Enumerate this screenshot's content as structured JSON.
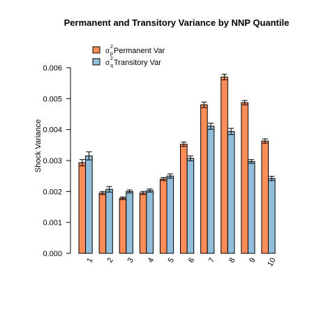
{
  "chart_data": {
    "type": "bar",
    "title": "Permanent and Transitory Variance by  NNP Quantile",
    "xlabel": "",
    "ylabel": "Shock Variance",
    "ylim": [
      0,
      0.006
    ],
    "yticks": [
      "0.000",
      "0.001",
      "0.002",
      "0.003",
      "0.004",
      "0.005",
      "0.006"
    ],
    "grid": false,
    "legend_position": "top-left",
    "categories": [
      "1",
      "2",
      "3",
      "4",
      "5",
      "6",
      "7",
      "8",
      "9",
      "10"
    ],
    "series": [
      {
        "name": "Permanent Var",
        "symbol": "σ",
        "superscript": "2",
        "subscript": "p",
        "color": "#FC8D59",
        "values": [
          0.00293,
          0.00195,
          0.00178,
          0.00195,
          0.0024,
          0.00353,
          0.0048,
          0.0057,
          0.00487,
          0.00363
        ],
        "errors": [
          0.0001,
          5e-05,
          4e-05,
          5e-05,
          5e-05,
          7e-05,
          9e-05,
          9e-05,
          7e-05,
          7e-05
        ]
      },
      {
        "name": "Transitory Var",
        "symbol": "σ",
        "superscript": "2",
        "subscript": "q",
        "color": "#91BFDB",
        "values": [
          0.00315,
          0.00207,
          0.002,
          0.00203,
          0.0025,
          0.00307,
          0.00411,
          0.00394,
          0.00297,
          0.00242
        ],
        "errors": [
          0.00013,
          9e-05,
          5e-05,
          5e-05,
          7e-05,
          8e-05,
          0.0001,
          0.0001,
          6e-05,
          7e-05
        ]
      }
    ]
  }
}
